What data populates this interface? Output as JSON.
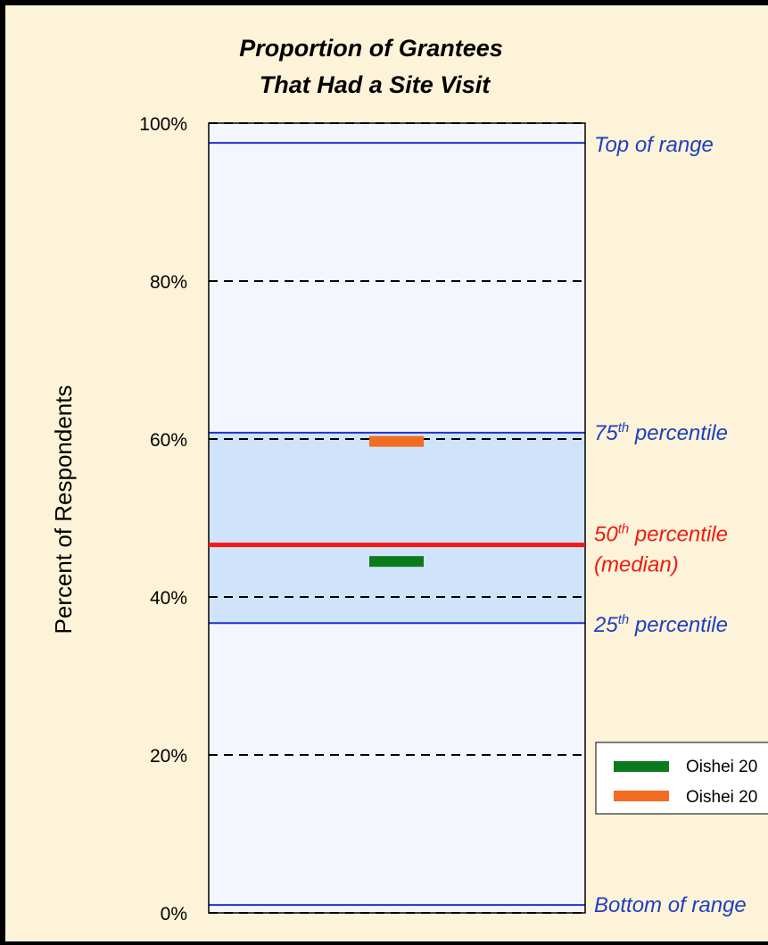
{
  "chart_data": {
    "type": "range-bar",
    "title": [
      "Proportion of Grantees",
      "That Had a Site Visit"
    ],
    "ylabel": "Percent of Respondents",
    "ylim": [
      0,
      100
    ],
    "yticks": [
      {
        "value": 0,
        "label": "0%"
      },
      {
        "value": 20,
        "label": "20%"
      },
      {
        "value": 40,
        "label": "40%"
      },
      {
        "value": 60,
        "label": "60%"
      },
      {
        "value": 80,
        "label": "80%"
      },
      {
        "value": 100,
        "label": "100%"
      }
    ],
    "distribution": {
      "bottom_of_range": 1,
      "p25": 36.7,
      "p50": 46.6,
      "p75": 60.8,
      "top_of_range": 97.5
    },
    "markers": [
      {
        "value": 44.5,
        "color": "#0a7a1c"
      },
      {
        "value": 59.7,
        "color": "#f26c21"
      }
    ],
    "annotations": {
      "top": "Top of range",
      "p75_num": "75",
      "p75_sup": "th",
      "p75_rest": " percentile",
      "p50_num": "50",
      "p50_sup": "th",
      "p50_rest": " percentile",
      "median": "(median)",
      "p25_num": "25",
      "p25_sup": "th",
      "p25_rest": " percentile",
      "bottom": "Bottom of range"
    },
    "legend": [
      {
        "label": "Oishei 20",
        "color": "#0a7a1c"
      },
      {
        "label": "Oishei 20",
        "color": "#f26c21"
      }
    ],
    "colors": {
      "range_fill": "#f3f7fd",
      "iqr_fill": "#cfe4fb",
      "range_line": "#1f2fcf",
      "median_line": "#f01a14",
      "annotation_blue": "#1f3fbf",
      "annotation_red": "#f01a14"
    }
  }
}
